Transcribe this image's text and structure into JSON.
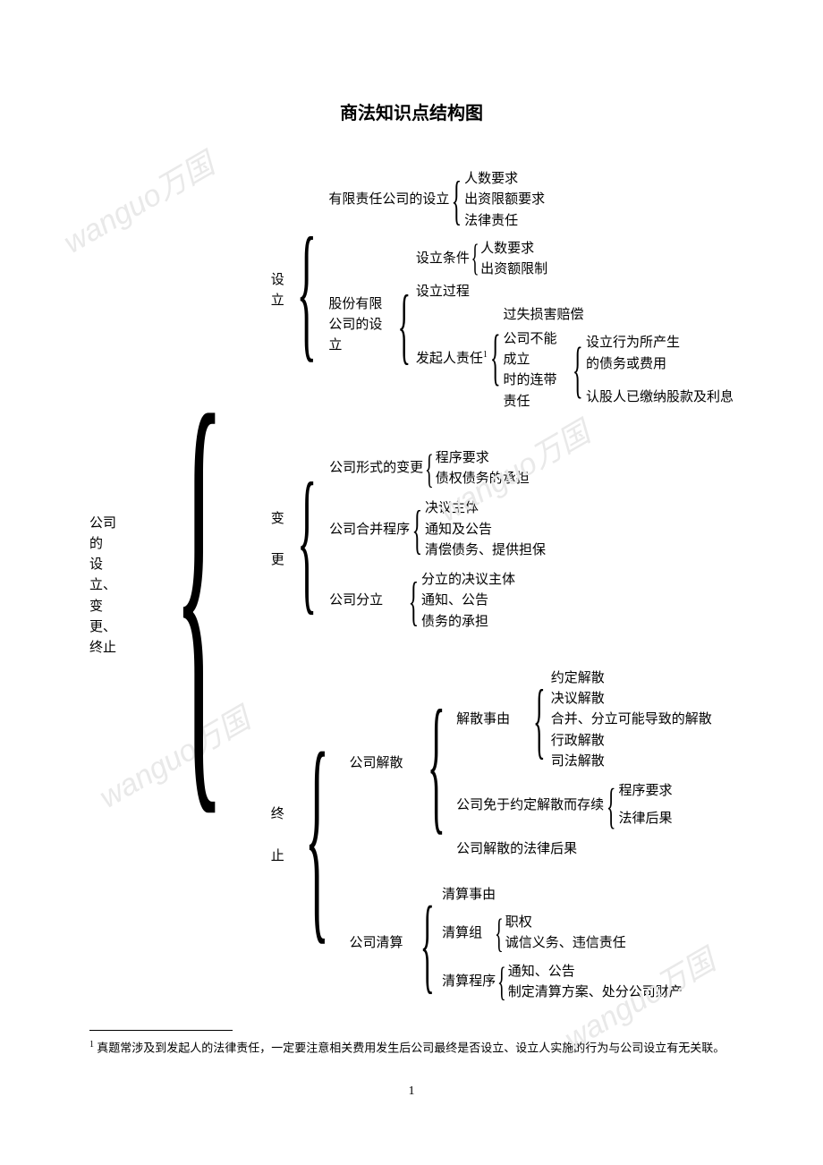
{
  "title": "商法知识点结构图",
  "root": "公司的\n设立、\n变更、\n终止",
  "level1": {
    "sheli": "设\n立",
    "biangen": "变\n\n更",
    "zhongzhi": "终\n\n止"
  },
  "sheli": {
    "youxian": "有限责任公司的设立",
    "youxian_children": [
      "人数要求",
      "出资限额要求",
      "法律责任"
    ],
    "gufen": "股份有限\n公司的设立",
    "gufen_shelitiaojian": "设立条件",
    "gufen_tiaojian_children": [
      "人数要求",
      "出资额限制"
    ],
    "gufen_process": "设立过程",
    "gufen_faqiren": "发起人责任",
    "faqiren_sup": "1",
    "faqiren_children": {
      "guoshi": "过失损害赔偿",
      "liandai": "公司不能成立\n时的连带责任",
      "liandai_children": [
        "设立行为所产生\n的债务或费用",
        "认股人已缴纳股款及利息"
      ]
    }
  },
  "biangen": {
    "xingshi": "公司形式的变更",
    "xingshi_children": [
      "程序要求",
      "债权债务的承担"
    ],
    "hebing": "公司合并程序",
    "hebing_children": [
      "决议主体",
      "通知及公告",
      "清偿债务、提供担保"
    ],
    "fenli": "公司分立",
    "fenli_children": [
      "分立的决议主体",
      "通知、公告",
      "债务的承担"
    ]
  },
  "zhongzhi": {
    "jiesan": "公司解散",
    "jiesan_shiyou": "解散事由",
    "jiesan_shiyou_children": [
      "约定解散",
      "决议解散",
      "合并、分立可能导致的解散",
      "行政解散",
      "司法解散"
    ],
    "jiesan_mianyu": "公司免于约定解散而存续",
    "jiesan_mianyu_children": [
      "程序要求",
      "法律后果"
    ],
    "jiesan_houguo": "公司解散的法律后果",
    "qingsuan": "公司清算",
    "qingsuan_shiyou": "清算事由",
    "qingsuan_zu": "清算组",
    "qingsuan_zu_children": [
      "职权",
      "诚信义务、违信责任"
    ],
    "qingsuan_chengxu": "清算程序",
    "qingsuan_chengxu_children": [
      "通知、公告",
      "制定清算方案、处分公司财产"
    ]
  },
  "footnote": {
    "marker": "1",
    "text": "真题常涉及到发起人的法律责任，一定要注意相关费用发生后公司最终是否设立、设立人实施的行为与公司设立有无关联。"
  },
  "pagenum": "1",
  "watermark": "wanguo万国",
  "style": {
    "brace_color": "#000000",
    "text_color": "#000000",
    "background": "#ffffff",
    "watermark_color": "#e9e9e9"
  }
}
